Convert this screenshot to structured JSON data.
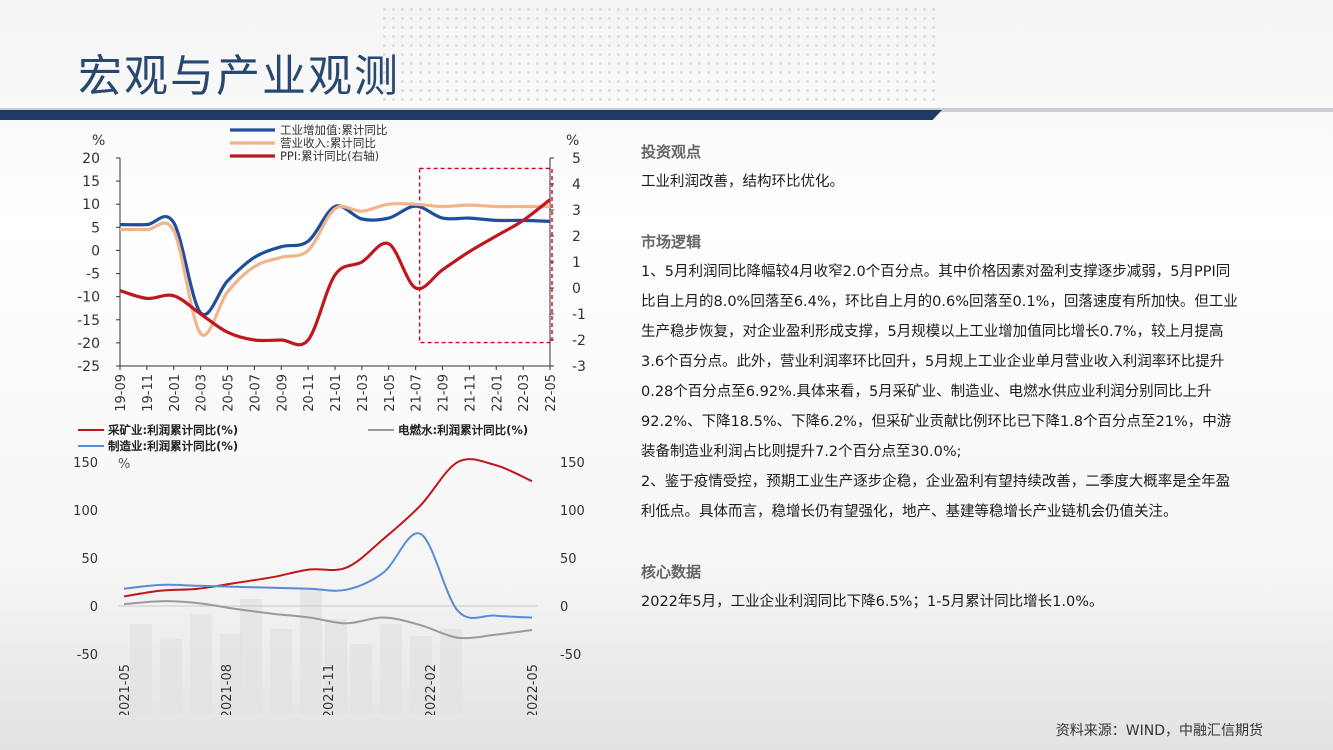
{
  "header": {
    "title": "宏观与产业观测"
  },
  "chart_data": [
    {
      "type": "line",
      "y_unit_left": "%",
      "y_unit_right": "%",
      "ylim_left": [
        -25,
        20
      ],
      "yticks_left": [
        "20",
        "15",
        "10",
        "5",
        "0",
        "-5",
        "-10",
        "-15",
        "-20",
        "-25"
      ],
      "ylim_right": [
        -3,
        5
      ],
      "yticks_right": [
        "5",
        "4",
        "3",
        "2",
        "1",
        "0",
        "-1",
        "-2",
        "-3"
      ],
      "x_ticks": [
        "19-09",
        "19-11",
        "20-01",
        "20-03",
        "20-05",
        "20-07",
        "20-09",
        "20-11",
        "21-01",
        "21-03",
        "21-05",
        "21-07",
        "21-09",
        "21-11",
        "22-01",
        "22-03",
        "22-05"
      ],
      "legend_position": "top",
      "series": [
        {
          "name": "工业增加值:累计同比",
          "color": "#1f4e9b",
          "axis": "left",
          "values": [
            5.6,
            5.6,
            6.0,
            -13.5,
            -6.6,
            -1.5,
            0.8,
            2.0,
            9.5,
            6.8,
            7.0,
            9.6,
            7.0,
            7.0,
            6.5,
            6.5,
            6.3
          ]
        },
        {
          "name": "营业收入:累计同比",
          "color": "#f2b48a",
          "axis": "left",
          "values": [
            4.5,
            4.5,
            4.2,
            -18.0,
            -9.0,
            -3.5,
            -1.5,
            0.0,
            9.0,
            8.5,
            10.0,
            10.0,
            9.5,
            9.8,
            9.5,
            9.5,
            9.5
          ]
        },
        {
          "name": "PPI:累计同比(右轴)",
          "color": "#c0161d",
          "axis": "right",
          "values": [
            -0.1,
            -0.4,
            -0.3,
            -1.0,
            -1.7,
            -2.0,
            -2.0,
            -2.0,
            0.5,
            1.0,
            1.7,
            0.0,
            0.7,
            1.4,
            2.0,
            2.6,
            3.4
          ]
        }
      ]
    },
    {
      "type": "line",
      "y_unit_left": "%",
      "ylim_left": [
        -50,
        150
      ],
      "yticks_left": [
        "150",
        "100",
        "50",
        "0",
        "-50"
      ],
      "ylim_right": [
        -50,
        150
      ],
      "yticks_right": [
        "150",
        "100",
        "50",
        "0",
        "-50"
      ],
      "x_ticks": [
        "2021-05",
        "2021-08",
        "2021-11",
        "2022-02",
        "2022-05"
      ],
      "legend_position": "top",
      "series": [
        {
          "name": "采矿业:利润累计同比(%)",
          "color": "#c0161d",
          "values": [
            10,
            16,
            18,
            24,
            30,
            38,
            40,
            70,
            105,
            150,
            147,
            130
          ]
        },
        {
          "name": "电燃水:利润累计同比(%)",
          "color": "#9a9a9a",
          "values": [
            2,
            5,
            3,
            -3,
            -8,
            -12,
            -18,
            -12,
            -20,
            -33,
            -30,
            -25
          ]
        },
        {
          "name": "制造业:利润累计同比(%)",
          "color": "#5b8ad6",
          "values": [
            18,
            22,
            21,
            20,
            19,
            18,
            17,
            35,
            75,
            -5,
            -10,
            -12
          ]
        }
      ]
    }
  ],
  "commentary": {
    "sec1_title": "投资观点",
    "sec1_text": "工业利润改善，结构环比优化。",
    "sec2_title": "市场逻辑",
    "sec2_p1": "1、5月利润同比降幅较4月收窄2.0个百分点。其中价格因素对盈利支撑逐步减弱，5月PPI同比自上月的8.0%回落至6.4%，环比自上月的0.6%回落至0.1%，回落速度有所加快。但工业生产稳步恢复，对企业盈利形成支撑，5月规模以上工业增加值同比增长0.7%，较上月提高3.6个百分点。此外，营业利润率环比回升，5月规上工业企业单月营业收入利润率环比提升0.28个百分点至6.92%.具体来看，5月采矿业、制造业、电燃水供应业利润分别同比上升92.2%、下降18.5%、下降6.2%，但采矿业贡献比例环比已下降1.8个百分点至21%，中游装备制造业利润占比则提升7.2个百分点至30.0%;",
    "sec2_p2": "2、鉴于疫情受控，预期工业生产逐步企稳，企业盈利有望持续改善，二季度大概率是全年盈利低点。具体而言，稳增长仍有望强化，地产、基建等稳增长产业链机会仍值关注。",
    "sec3_title": "核心数据",
    "sec3_text": "2022年5月，工业企业利润同比下降6.5%；1-5月累计同比增长1.0%。"
  },
  "footer": {
    "source": "资料来源：WIND，中融汇信期货"
  }
}
